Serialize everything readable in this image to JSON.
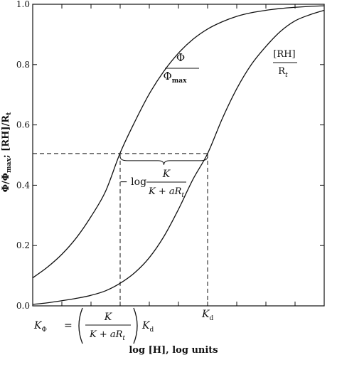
{
  "chart_data": {
    "type": "line",
    "title": "",
    "xlabel": "log [H], log units",
    "ylabel": "Φ/Φmax; [RH]/Rt",
    "ylabel_parts": {
      "a": "Φ/Φ",
      "a_sub": "max",
      "b": "; [RH]/R",
      "b_sub": "t"
    },
    "ylim": [
      0,
      1.0
    ],
    "xlim": [
      0,
      10
    ],
    "y_ticks": [
      0,
      0.2,
      0.4,
      0.6,
      0.8,
      1.0
    ],
    "y_tick_labels": [
      "0.0",
      "0.2",
      "0.4",
      "0.6",
      "0.8",
      "1.0"
    ],
    "x_ticks": [
      0,
      1,
      2,
      3,
      4,
      5,
      6,
      7,
      8,
      9,
      10
    ],
    "grid": false,
    "series": [
      {
        "key": "phi",
        "x": [
          0,
          0.5,
          1,
          1.5,
          2,
          2.5,
          3,
          3.5,
          4,
          4.5,
          5,
          5.5,
          6,
          6.5,
          7,
          7.5,
          8,
          8.5,
          9,
          9.5,
          10
        ],
        "y": [
          0.093,
          0.128,
          0.171,
          0.226,
          0.296,
          0.38,
          0.507,
          0.61,
          0.703,
          0.778,
          0.838,
          0.884,
          0.918,
          0.942,
          0.96,
          0.972,
          0.98,
          0.986,
          0.99,
          0.993,
          0.995
        ]
      },
      {
        "key": "rh",
        "x": [
          0,
          0.5,
          1,
          1.5,
          2,
          2.5,
          3,
          3.5,
          4,
          4.5,
          5,
          5.5,
          6,
          6.5,
          7,
          7.5,
          8,
          8.5,
          9,
          9.5,
          10
        ],
        "y": [
          0.005,
          0.01,
          0.017,
          0.025,
          0.035,
          0.05,
          0.075,
          0.11,
          0.16,
          0.23,
          0.32,
          0.42,
          0.505,
          0.62,
          0.72,
          0.8,
          0.86,
          0.91,
          0.945,
          0.965,
          0.98
        ]
      }
    ],
    "annotations": {
      "phi_label": {
        "num": "Φ",
        "den": "Φ",
        "den_sub": "max"
      },
      "rh_label": {
        "num": "[RH]",
        "den": "R",
        "den_sub": "t"
      },
      "half_level": 0.505,
      "k_phi_x": 3.0,
      "k_d_x": 6.0,
      "bracket_text": {
        "prefix": "− log",
        "num": "K",
        "den_a": "K + aR",
        "den_sub": "t"
      },
      "k_phi_formula": {
        "lhs": "K",
        "lhs_sub": "Φ",
        "eq": "=",
        "num": "K",
        "den_a": "K + aR",
        "den_sub": "t",
        "tail": "K",
        "tail_sub": "d"
      },
      "k_d_label": {
        "main": "K",
        "sub": "d"
      }
    },
    "colors": {
      "line": "#111111"
    }
  }
}
